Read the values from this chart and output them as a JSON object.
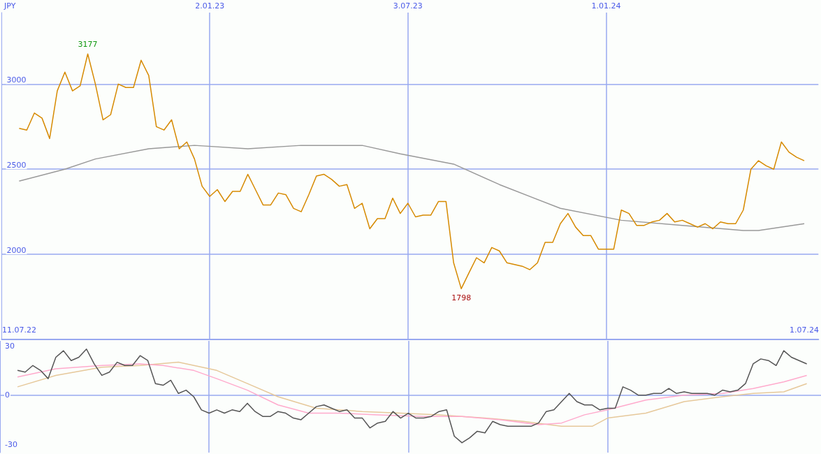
{
  "chart_data": [
    {
      "type": "line",
      "ylabel": "JPY",
      "x": [
        "2022-07-11",
        "2022-07-18",
        "2022-07-25",
        "2022-08-01",
        "2022-08-08",
        "2022-08-15",
        "2022-08-22",
        "2022-08-29",
        "2022-09-05",
        "2022-09-12",
        "2022-09-19",
        "2022-09-26",
        "2022-10-03",
        "2022-10-10",
        "2022-10-17",
        "2022-10-24",
        "2022-10-31",
        "2022-11-07",
        "2022-11-14",
        "2022-11-21",
        "2022-11-28",
        "2022-12-05",
        "2022-12-12",
        "2022-12-19",
        "2022-12-26",
        "2023-01-02",
        "2023-01-09",
        "2023-01-16",
        "2023-01-23",
        "2023-01-30",
        "2023-02-06",
        "2023-02-13",
        "2023-02-20",
        "2023-02-27",
        "2023-03-06",
        "2023-03-13",
        "2023-03-20",
        "2023-03-27",
        "2023-04-03",
        "2023-04-10",
        "2023-04-17",
        "2023-04-24",
        "2023-05-01",
        "2023-05-08",
        "2023-05-15",
        "2023-05-22",
        "2023-05-29",
        "2023-06-05",
        "2023-06-12",
        "2023-06-19",
        "2023-06-26",
        "2023-07-03",
        "2023-07-10",
        "2023-07-17",
        "2023-07-24",
        "2023-07-31",
        "2023-08-07",
        "2023-08-14",
        "2023-08-21",
        "2023-08-28",
        "2023-09-04",
        "2023-09-11",
        "2023-09-18",
        "2023-09-25",
        "2023-10-02",
        "2023-10-09",
        "2023-10-16",
        "2023-10-23",
        "2023-10-30",
        "2023-11-06",
        "2023-11-13",
        "2023-11-20",
        "2023-11-27",
        "2023-12-04",
        "2023-12-11",
        "2023-12-18",
        "2023-12-25",
        "2024-01-01",
        "2024-01-08",
        "2024-01-15",
        "2024-01-22",
        "2024-01-29",
        "2024-02-05",
        "2024-02-12",
        "2024-02-19",
        "2024-02-26",
        "2024-03-04",
        "2024-03-11",
        "2024-03-18",
        "2024-03-25",
        "2024-04-01",
        "2024-04-08",
        "2024-04-15",
        "2024-04-22",
        "2024-04-29",
        "2024-05-06",
        "2024-05-13",
        "2024-05-20",
        "2024-05-27",
        "2024-06-03",
        "2024-06-10",
        "2024-06-17",
        "2024-06-24",
        "2024-07-01"
      ],
      "series": [
        {
          "color": "#d68a00",
          "values": [
            2740,
            2730,
            2830,
            2800,
            2680,
            2960,
            3070,
            2960,
            2990,
            3177,
            3000,
            2790,
            2820,
            3000,
            2980,
            2980,
            3140,
            3050,
            2750,
            2730,
            2790,
            2620,
            2660,
            2560,
            2400,
            2340,
            2380,
            2310,
            2370,
            2370,
            2470,
            2380,
            2290,
            2290,
            2360,
            2350,
            2270,
            2250,
            2350,
            2460,
            2470,
            2440,
            2400,
            2410,
            2270,
            2300,
            2150,
            2210,
            2210,
            2330,
            2240,
            2300,
            2220,
            2230,
            2230,
            2310,
            2310,
            1950,
            1798,
            1890,
            1980,
            1950,
            2040,
            2020,
            1950,
            1940,
            1930,
            1910,
            1950,
            2070,
            2070,
            2180,
            2240,
            2160,
            2110,
            2110,
            2030,
            2030,
            2030,
            2260,
            2240,
            2170,
            2170,
            2190,
            2200,
            2240,
            2190,
            2200,
            2180,
            2160,
            2180,
            2150,
            2190,
            2180,
            2180,
            2260,
            2500,
            2550,
            2520,
            2500,
            2660,
            2600,
            2570,
            2550
          ]
        },
        {
          "color": "#999999",
          "x": [
            "2022-07-11",
            "2022-08-22",
            "2022-09-19",
            "2022-11-07",
            "2022-12-19",
            "2023-02-06",
            "2023-03-27",
            "2023-05-22",
            "2023-06-26",
            "2023-08-14",
            "2023-09-25",
            "2023-11-20",
            "2024-01-15",
            "2024-03-11",
            "2024-05-06",
            "2024-05-20",
            "2024-07-01"
          ],
          "values": [
            2430,
            2500,
            2560,
            2620,
            2640,
            2620,
            2640,
            2640,
            2590,
            2530,
            2410,
            2270,
            2200,
            2170,
            2140,
            2140,
            2180
          ]
        }
      ],
      "xlim": [
        "2022-06-25",
        "2024-07-14"
      ],
      "xticks": [
        {
          "value": "2022-07-11",
          "label": "11.07.22"
        },
        {
          "value": "2024-07-01",
          "label": "1.07.24"
        }
      ],
      "x2lim": [
        "2022-06-25",
        "2024-07-14"
      ],
      "x2ticks": [
        {
          "value": "2023-01-02",
          "label": "2.01.23"
        },
        {
          "value": "2023-07-03",
          "label": "3.07.23"
        },
        {
          "value": "2024-01-01",
          "label": "1.01.24"
        }
      ],
      "ylim": [
        1500,
        3420
      ],
      "yticks": [
        2000,
        2500,
        3000
      ],
      "grid": true,
      "annotations": [
        {
          "text": "3177",
          "x": "2022-09-12",
          "y": 3177
        },
        {
          "text": "1798",
          "x": "2023-08-21",
          "y": 1798
        }
      ]
    },
    {
      "type": "line",
      "xlim": [
        "2022-06-25",
        "2024-07-14"
      ],
      "ylim": [
        -35,
        33
      ],
      "yticks": [
        -30,
        0,
        30
      ],
      "tick_labels": "y",
      "ref_lines": [
        {
          "axis": "y",
          "value": 0
        },
        {
          "axis": "x",
          "value": "2023-01-02"
        },
        {
          "axis": "x",
          "value": "2023-07-03"
        },
        {
          "axis": "x",
          "value": "2024-01-01"
        }
      ],
      "series": [
        {
          "color": "#555555",
          "x": [
            "2022-07-11",
            "2022-07-18",
            "2022-07-25",
            "2022-08-01",
            "2022-08-08",
            "2022-08-15",
            "2022-08-22",
            "2022-08-29",
            "2022-09-05",
            "2022-09-12",
            "2022-09-19",
            "2022-09-26",
            "2022-10-03",
            "2022-10-10",
            "2022-10-17",
            "2022-10-24",
            "2022-10-31",
            "2022-11-07",
            "2022-11-14",
            "2022-11-21",
            "2022-11-28",
            "2022-12-05",
            "2022-12-12",
            "2022-12-19",
            "2022-12-26",
            "2023-01-02",
            "2023-01-09",
            "2023-01-16",
            "2023-01-23",
            "2023-01-30",
            "2023-02-06",
            "2023-02-13",
            "2023-02-20",
            "2023-02-27",
            "2023-03-06",
            "2023-03-13",
            "2023-03-20",
            "2023-03-27",
            "2023-04-03",
            "2023-04-10",
            "2023-04-17",
            "2023-04-24",
            "2023-05-01",
            "2023-05-08",
            "2023-05-15",
            "2023-05-22",
            "2023-05-29",
            "2023-06-05",
            "2023-06-12",
            "2023-06-19",
            "2023-06-26",
            "2023-07-03",
            "2023-07-10",
            "2023-07-17",
            "2023-07-24",
            "2023-07-31",
            "2023-08-07",
            "2023-08-14",
            "2023-08-21",
            "2023-08-28",
            "2023-09-04",
            "2023-09-11",
            "2023-09-18",
            "2023-09-25",
            "2023-10-02",
            "2023-10-09",
            "2023-10-16",
            "2023-10-23",
            "2023-10-30",
            "2023-11-06",
            "2023-11-13",
            "2023-11-20",
            "2023-11-27",
            "2023-12-04",
            "2023-12-11",
            "2023-12-18",
            "2023-12-25",
            "2024-01-01",
            "2024-01-08",
            "2024-01-15",
            "2024-01-22",
            "2024-01-29",
            "2024-02-05",
            "2024-02-12",
            "2024-02-19",
            "2024-02-26",
            "2024-03-04",
            "2024-03-11",
            "2024-03-18",
            "2024-03-25",
            "2024-04-01",
            "2024-04-08",
            "2024-04-15",
            "2024-04-22",
            "2024-04-29",
            "2024-05-06",
            "2024-05-13",
            "2024-05-20",
            "2024-05-27",
            "2024-06-03",
            "2024-06-10",
            "2024-06-17",
            "2024-06-24",
            "2024-07-01"
          ],
          "values": [
            15,
            14,
            18,
            15,
            10,
            23,
            27,
            21,
            23,
            28,
            19,
            12,
            14,
            20,
            18,
            18,
            24,
            21,
            7,
            6,
            9,
            1,
            3,
            -1,
            -9,
            -11,
            -9,
            -11,
            -9,
            -10,
            -5,
            -10,
            -13,
            -13,
            -10,
            -11,
            -14,
            -15,
            -11,
            -7,
            -6,
            -8,
            -10,
            -9,
            -14,
            -14,
            -20,
            -17,
            -16,
            -10,
            -14,
            -11,
            -14,
            -14,
            -13,
            -10,
            -9,
            -25,
            -29,
            -26,
            -22,
            -23,
            -16,
            -18,
            -19,
            -19,
            -19,
            -19,
            -17,
            -10,
            -9,
            -4,
            1,
            -4,
            -6,
            -6,
            -9,
            -8,
            -8,
            5,
            3,
            0,
            0,
            1,
            1,
            4,
            1,
            2,
            1,
            1,
            1,
            0,
            3,
            2,
            3,
            7,
            19,
            22,
            21,
            18,
            27,
            23,
            21,
            19
          ]
        },
        {
          "color": "#ffaacc",
          "x": [
            "2022-07-11",
            "2022-08-15",
            "2022-09-26",
            "2022-10-31",
            "2022-11-21",
            "2022-12-19",
            "2023-01-09",
            "2023-02-06",
            "2023-03-06",
            "2023-04-03",
            "2023-05-01",
            "2023-06-05",
            "2023-07-17",
            "2023-08-21",
            "2023-09-25",
            "2023-10-30",
            "2023-11-20",
            "2023-12-11",
            "2024-01-01",
            "2024-02-05",
            "2024-03-11",
            "2024-04-15",
            "2024-05-13",
            "2024-06-10",
            "2024-07-01"
          ],
          "values": [
            11,
            16,
            18,
            19,
            18,
            15,
            10,
            3,
            -6,
            -11,
            -11,
            -12,
            -13,
            -13,
            -15,
            -18,
            -17,
            -12,
            -9,
            -3,
            0,
            1,
            4,
            8,
            12
          ]
        },
        {
          "color": "#e6c89a",
          "x": [
            "2022-07-11",
            "2022-08-15",
            "2022-09-26",
            "2022-10-31",
            "2022-12-05",
            "2023-01-09",
            "2023-02-06",
            "2023-03-06",
            "2023-04-10",
            "2023-05-22",
            "2023-06-26",
            "2023-07-31",
            "2023-09-11",
            "2023-10-16",
            "2023-11-20",
            "2023-12-18",
            "2024-01-01",
            "2024-02-05",
            "2024-03-11",
            "2024-04-15",
            "2024-05-13",
            "2024-06-10",
            "2024-07-01"
          ],
          "values": [
            5,
            12,
            17,
            18,
            20,
            15,
            7,
            -1,
            -8,
            -10,
            -11,
            -12,
            -14,
            -16,
            -19,
            -19,
            -14,
            -11,
            -4,
            -1,
            1,
            2,
            7
          ]
        }
      ]
    }
  ]
}
